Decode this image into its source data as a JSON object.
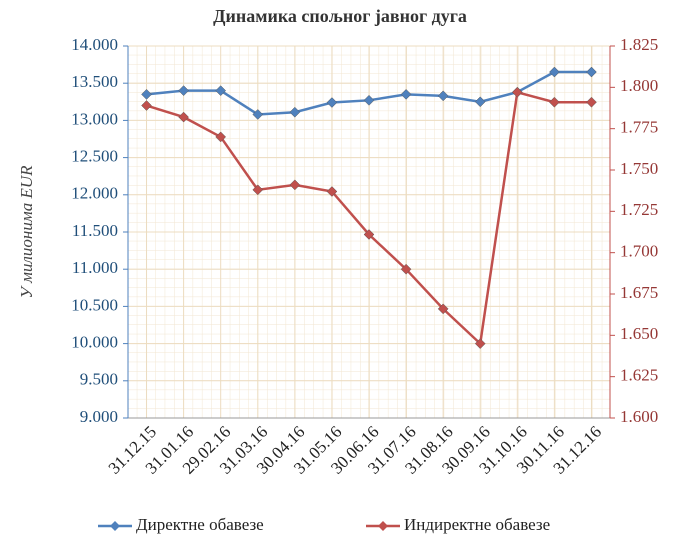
{
  "chart_data": {
    "type": "line",
    "title": "Динамика спољног јавног дуга",
    "y_label": "У милионима EUR",
    "categories": [
      "31.12.15",
      "31.01.16",
      "29.02.16",
      "31.03.16",
      "30.04.16",
      "31.05.16",
      "30.06.16",
      "31.07.16",
      "31.08.16",
      "30.09.16",
      "31.10.16",
      "30.11.16",
      "31.12.16"
    ],
    "series": [
      {
        "name": "Директне обавезе",
        "color": "#4f81bd",
        "axis": "y",
        "values": [
          13350,
          13400,
          13400,
          13080,
          13110,
          13240,
          13270,
          13350,
          13330,
          13250,
          13380,
          13650,
          13650
        ]
      },
      {
        "name": "Индиректне обавезе",
        "color": "#c0504d",
        "axis": "y2",
        "values": [
          1789,
          1782,
          1770,
          1738,
          1741,
          1737,
          1711,
          1690,
          1666,
          1645,
          1797,
          1791,
          1791
        ]
      }
    ],
    "ylim": [
      9000,
      14000
    ],
    "yticks": [
      {
        "value": 9000,
        "label": "9.000"
      },
      {
        "value": 9500,
        "label": "9.500"
      },
      {
        "value": 10000,
        "label": "10.000"
      },
      {
        "value": 10500,
        "label": "10.500"
      },
      {
        "value": 11000,
        "label": "11.000"
      },
      {
        "value": 11500,
        "label": "11.500"
      },
      {
        "value": 12000,
        "label": "12.000"
      },
      {
        "value": 12500,
        "label": "12.500"
      },
      {
        "value": 13000,
        "label": "13.000"
      },
      {
        "value": 13500,
        "label": "13.500"
      },
      {
        "value": 14000,
        "label": "14.000"
      }
    ],
    "y2lim": [
      1600,
      1825
    ],
    "y2ticks": [
      {
        "value": 1600,
        "label": "1.600"
      },
      {
        "value": 1625,
        "label": "1.625"
      },
      {
        "value": 1650,
        "label": "1.650"
      },
      {
        "value": 1675,
        "label": "1.675"
      },
      {
        "value": 1700,
        "label": "1.700"
      },
      {
        "value": 1725,
        "label": "1.725"
      },
      {
        "value": 1750,
        "label": "1.750"
      },
      {
        "value": 1775,
        "label": "1.775"
      },
      {
        "value": 1800,
        "label": "1.800"
      },
      {
        "value": 1825,
        "label": "1.825"
      }
    ],
    "grid": true,
    "legend": "bottom"
  }
}
